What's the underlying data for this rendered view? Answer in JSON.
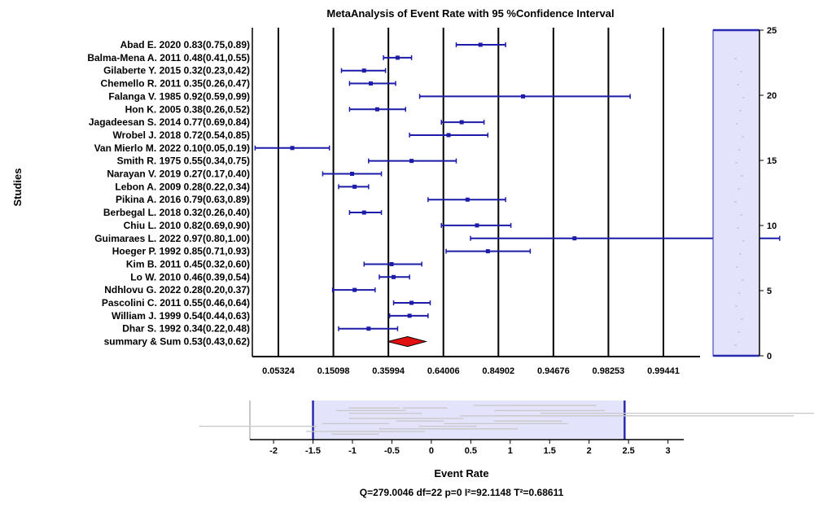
{
  "chart_data": {
    "type": "forest",
    "title": "MetaAnalysis of Event Rate with 95 %Confidence Interval",
    "ylabel": "Studies",
    "xlabel": "Event Rate",
    "x_tick_labels": [
      "0.05324",
      "0.15098",
      "0.35994",
      "0.64006",
      "0.84902",
      "0.94676",
      "0.98253",
      "0.99441"
    ],
    "logit_range": [
      -3.0,
      6.0
    ],
    "studies": [
      {
        "label": "Abad E. 2020 0.83(0.75,0.89)",
        "est": 0.83,
        "lo": 0.75,
        "hi": 0.89
      },
      {
        "label": "Balma-Mena A. 2011 0.48(0.41,0.55)",
        "est": 0.48,
        "lo": 0.41,
        "hi": 0.55
      },
      {
        "label": "Gilaberte Y. 2015 0.32(0.23,0.42)",
        "est": 0.32,
        "lo": 0.23,
        "hi": 0.42
      },
      {
        "label": "Chemello R. 2011 0.35(0.26,0.47)",
        "est": 0.35,
        "lo": 0.26,
        "hi": 0.47
      },
      {
        "label": "Falanga V. 1985 0.92(0.59,0.99)",
        "est": 0.92,
        "lo": 0.59,
        "hi": 0.99
      },
      {
        "label": "Hon K. 2005 0.38(0.26,0.52)",
        "est": 0.38,
        "lo": 0.26,
        "hi": 0.52
      },
      {
        "label": "Jagadeesan S. 2014 0.77(0.69,0.84)",
        "est": 0.77,
        "lo": 0.69,
        "hi": 0.84
      },
      {
        "label": "Wrobel J. 2018 0.72(0.54,0.85)",
        "est": 0.72,
        "lo": 0.54,
        "hi": 0.85
      },
      {
        "label": "Van Mierlo M. 2022 0.10(0.05,0.19)",
        "est": 0.1,
        "lo": 0.05,
        "hi": 0.19
      },
      {
        "label": "Smith R. 1975 0.55(0.34,0.75)",
        "est": 0.55,
        "lo": 0.34,
        "hi": 0.75
      },
      {
        "label": "Narayan V. 2019 0.27(0.17,0.40)",
        "est": 0.27,
        "lo": 0.17,
        "hi": 0.4
      },
      {
        "label": "Lebon A. 2009 0.28(0.22,0.34)",
        "est": 0.28,
        "lo": 0.22,
        "hi": 0.34
      },
      {
        "label": "Pikina A. 2016 0.79(0.63,0.89)",
        "est": 0.79,
        "lo": 0.63,
        "hi": 0.89
      },
      {
        "label": "Berbegal L. 2018 0.32(0.26,0.40)",
        "est": 0.32,
        "lo": 0.26,
        "hi": 0.4
      },
      {
        "label": "Chiu L. 2010 0.82(0.69,0.90)",
        "est": 0.82,
        "lo": 0.69,
        "hi": 0.9
      },
      {
        "label": "Guimaraes L. 2022 0.97(0.80,1.00)",
        "est": 0.97,
        "lo": 0.8,
        "hi": 1.0
      },
      {
        "label": "Hoeger P. 1992 0.85(0.71,0.93)",
        "est": 0.85,
        "lo": 0.71,
        "hi": 0.93
      },
      {
        "label": "Kim B. 2011 0.45(0.32,0.60)",
        "est": 0.45,
        "lo": 0.32,
        "hi": 0.6
      },
      {
        "label": "Lo W. 2010 0.46(0.39,0.54)",
        "est": 0.46,
        "lo": 0.39,
        "hi": 0.54
      },
      {
        "label": "Ndhlovu G. 2022 0.28(0.20,0.37)",
        "est": 0.28,
        "lo": 0.2,
        "hi": 0.37
      },
      {
        "label": "Pascolini C. 2011 0.55(0.46,0.64)",
        "est": 0.55,
        "lo": 0.46,
        "hi": 0.64
      },
      {
        "label": "William J. 1999 0.54(0.44,0.63)",
        "est": 0.54,
        "lo": 0.44,
        "hi": 0.63
      },
      {
        "label": "Dhar S. 1992 0.34(0.22,0.48)",
        "est": 0.34,
        "lo": 0.22,
        "hi": 0.48
      }
    ],
    "summary": {
      "label": "summary & Sum 0.53(0.43,0.62)",
      "est": 0.53,
      "lo": 0.43,
      "hi": 0.62
    },
    "scrollbar_ticks": [
      "25",
      "20",
      "15",
      "10",
      "5",
      "0"
    ],
    "bottom_axis": {
      "ticks": [
        "-2",
        "-1.5",
        "-1",
        "-0.5",
        "0",
        "0.5",
        "1",
        "1.5",
        "2",
        "2.5",
        "3"
      ],
      "range": [
        -2.3,
        3.2
      ],
      "selected_range": [
        -1.5,
        2.45
      ]
    },
    "stats": "Q=279.0046 df=22 p=0 I²=92.1148 T²=0.68611",
    "colors": {
      "ci": "#1c1ca8",
      "summary": "#e01010",
      "selection": "#e3e3fb",
      "selection_border": "#2a2ab0"
    }
  }
}
